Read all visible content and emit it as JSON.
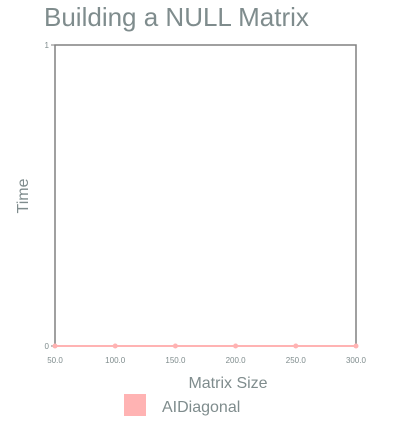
{
  "chart_data": {
    "type": "line",
    "title": "Building a NULL Matrix",
    "xlabel": "Matrix Size",
    "ylabel": "Time",
    "x": [
      50.0,
      100.0,
      150.0,
      200.0,
      250.0,
      300.0
    ],
    "x_tick_labels": [
      "50.0",
      "100.0",
      "150.0",
      "200.0",
      "250.0",
      "300.0"
    ],
    "y_tick_labels": [
      "0",
      "1"
    ],
    "xlim": [
      50,
      300
    ],
    "ylim": [
      0,
      1
    ],
    "grid": false,
    "legend_position": "bottom",
    "series": [
      {
        "name": "AIDiagonal",
        "color": "#ffb3b3",
        "values": [
          0,
          0,
          0,
          0,
          0,
          0
        ]
      }
    ]
  },
  "colors": {
    "axis": "#808080",
    "text": "#7f8c8d"
  }
}
